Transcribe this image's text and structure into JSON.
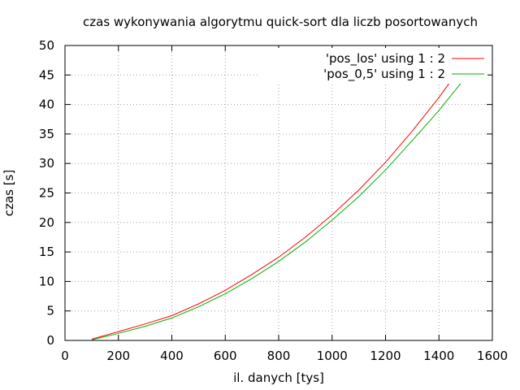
{
  "chart_data": {
    "type": "line",
    "title": "czas wykonywania algorytmu quick-sort dla liczb posortowanych",
    "xlabel": "il. danych [tys]",
    "ylabel": "czas [s]",
    "xlim": [
      0,
      1600
    ],
    "ylim": [
      0,
      50
    ],
    "xticks": [
      "0",
      "200",
      "400",
      "600",
      "800",
      "1000",
      "1200",
      "1400",
      "1600"
    ],
    "yticks": [
      "0",
      "5",
      "10",
      "15",
      "20",
      "25",
      "30",
      "35",
      "40",
      "45",
      "50"
    ],
    "grid": true,
    "legend_position": "top-right",
    "series": [
      {
        "name": "'pos_los' using 1 : 2",
        "color": "#ff0000",
        "x": [
          100,
          200,
          300,
          400,
          500,
          600,
          700,
          800,
          900,
          1000,
          1100,
          1200,
          1300,
          1400,
          1500
        ],
        "y": [
          0.2,
          1.5,
          2.8,
          4.2,
          6.2,
          8.5,
          11.2,
          14.1,
          17.5,
          21.3,
          25.5,
          30.2,
          35.5,
          41.2,
          47.5
        ]
      },
      {
        "name": "'pos_0,5' using 1 : 2",
        "color": "#00b000",
        "x": [
          100,
          200,
          300,
          400,
          500,
          600,
          700,
          800,
          900,
          1000,
          1100,
          1200,
          1300,
          1400,
          1500
        ],
        "y": [
          0.1,
          1.2,
          2.4,
          3.8,
          5.7,
          7.9,
          10.5,
          13.4,
          16.7,
          20.4,
          24.4,
          28.9,
          33.9,
          39.0,
          44.6
        ]
      }
    ]
  }
}
